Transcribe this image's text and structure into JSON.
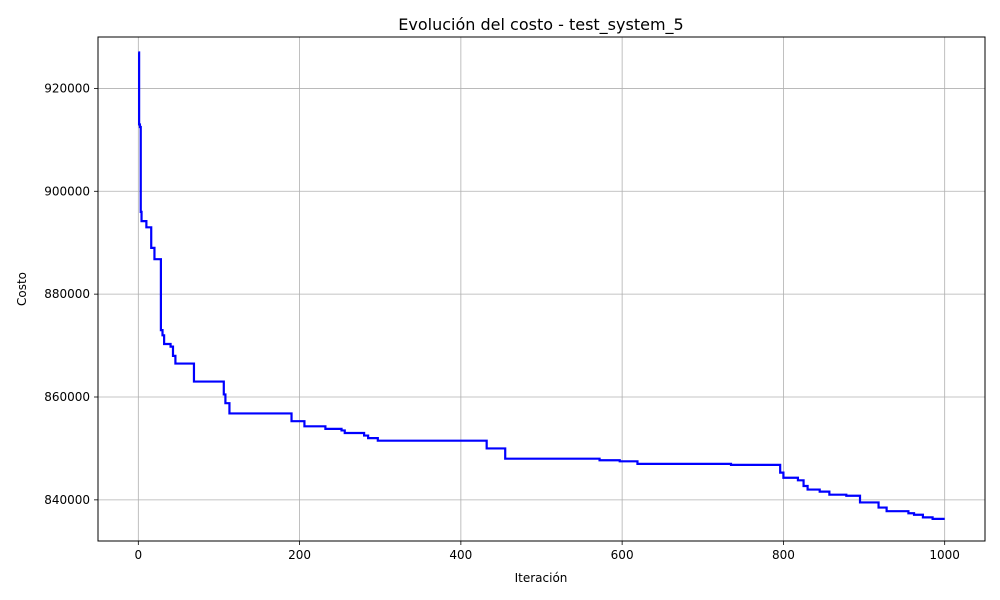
{
  "chart_data": {
    "type": "line",
    "title": "Evolución del costo - test_system_5",
    "xlabel": "Iteración",
    "ylabel": "Costo",
    "xlim": [
      -50,
      1050
    ],
    "ylim": [
      832000,
      930000
    ],
    "xticks": [
      0,
      200,
      400,
      600,
      800,
      1000
    ],
    "yticks": [
      840000,
      860000,
      880000,
      900000,
      920000
    ],
    "grid": true,
    "legend": "none",
    "series": [
      {
        "color": "#0000ff",
        "step": true,
        "points": [
          [
            0,
            927000
          ],
          [
            1,
            913000
          ],
          [
            2,
            912500
          ],
          [
            3,
            896000
          ],
          [
            4,
            894200
          ],
          [
            10,
            893000
          ],
          [
            16,
            889000
          ],
          [
            20,
            886800
          ],
          [
            28,
            873000
          ],
          [
            30,
            872000
          ],
          [
            32,
            870300
          ],
          [
            40,
            869800
          ],
          [
            43,
            868000
          ],
          [
            46,
            866500
          ],
          [
            69,
            863000
          ],
          [
            106,
            860500
          ],
          [
            108,
            858800
          ],
          [
            113,
            856800
          ],
          [
            190,
            855300
          ],
          [
            206,
            854300
          ],
          [
            232,
            853800
          ],
          [
            252,
            853500
          ],
          [
            256,
            853000
          ],
          [
            280,
            852500
          ],
          [
            285,
            852000
          ],
          [
            297,
            851500
          ],
          [
            432,
            850000
          ],
          [
            455,
            848000
          ],
          [
            572,
            847700
          ],
          [
            597,
            847500
          ],
          [
            619,
            847000
          ],
          [
            735,
            846800
          ],
          [
            796,
            845300
          ],
          [
            800,
            844300
          ],
          [
            818,
            843800
          ],
          [
            825,
            842700
          ],
          [
            830,
            842000
          ],
          [
            845,
            841600
          ],
          [
            857,
            841000
          ],
          [
            878,
            840800
          ],
          [
            895,
            839500
          ],
          [
            918,
            838500
          ],
          [
            928,
            837800
          ],
          [
            955,
            837400
          ],
          [
            962,
            837100
          ],
          [
            973,
            836600
          ],
          [
            985,
            836300
          ],
          [
            1000,
            836300
          ]
        ]
      }
    ]
  }
}
